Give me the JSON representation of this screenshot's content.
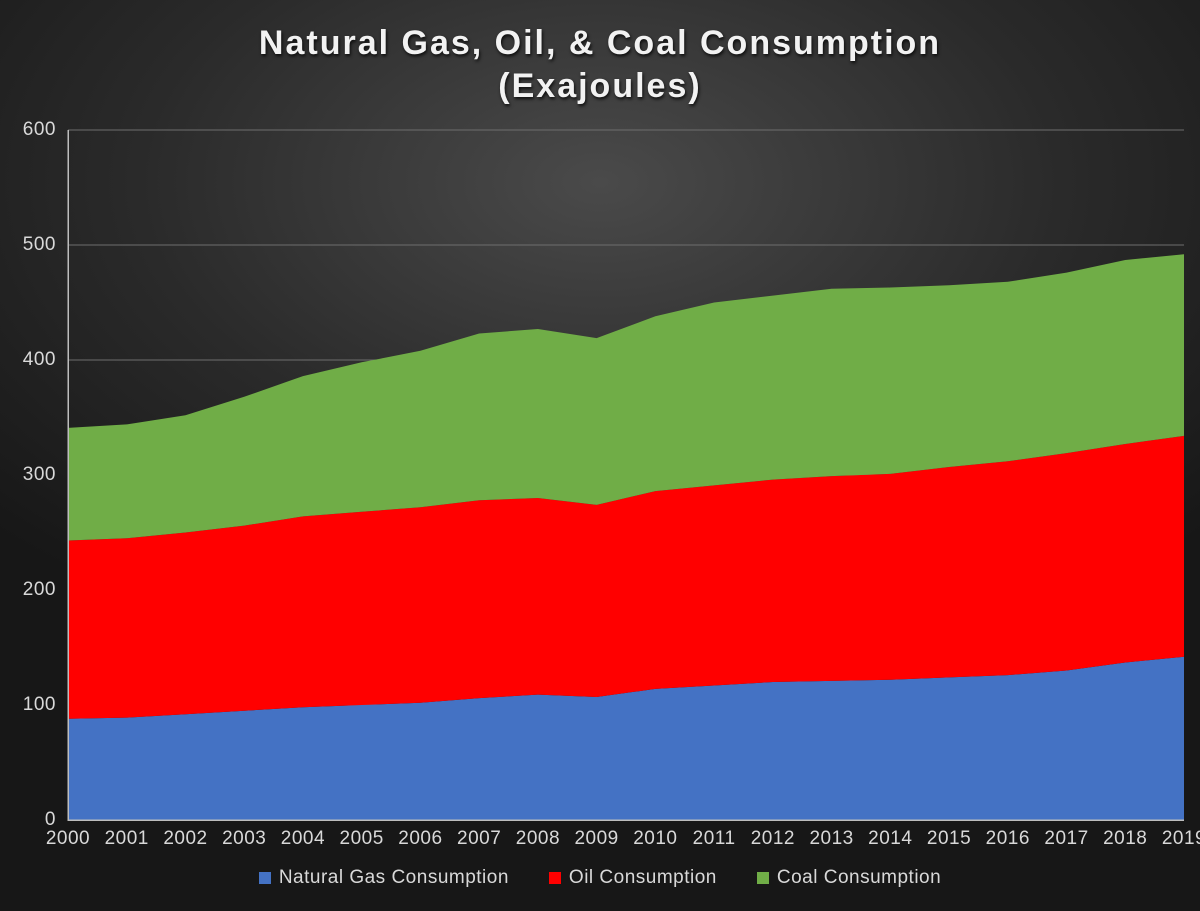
{
  "chart": {
    "type": "area-stacked",
    "title": "Natural Gas, Oil, & Coal Consumption\n(Exajoules)",
    "title_fontsize": 34,
    "title_color": "#f2f2f2",
    "background_gradient": {
      "center": "#4a4a4a",
      "edge": "#171717"
    },
    "axis_color": "#bdbdbd",
    "grid_color": "#6e6e6e",
    "tick_label_color": "#d9d9d9",
    "tick_label_fontsize": 19,
    "ylim": [
      0,
      600
    ],
    "ytick_step": 100,
    "yticks": [
      0,
      100,
      200,
      300,
      400,
      500,
      600
    ],
    "categories": [
      "2000",
      "2001",
      "2002",
      "2003",
      "2004",
      "2005",
      "2006",
      "2007",
      "2008",
      "2009",
      "2010",
      "2011",
      "2012",
      "2013",
      "2014",
      "2015",
      "2016",
      "2017",
      "2018",
      "2019"
    ],
    "series": [
      {
        "name": "Natural Gas Consumption",
        "color": "#4472c4",
        "values": [
          88,
          89,
          92,
          95,
          98,
          100,
          102,
          106,
          109,
          107,
          114,
          117,
          120,
          121,
          122,
          124,
          126,
          130,
          137,
          142
        ]
      },
      {
        "name": "Oil Consumption",
        "color": "#ff0000",
        "values": [
          155,
          156,
          158,
          161,
          166,
          168,
          170,
          172,
          171,
          167,
          172,
          174,
          176,
          178,
          179,
          183,
          186,
          189,
          190,
          192
        ]
      },
      {
        "name": "Coal Consumption",
        "color": "#70ad47",
        "values": [
          98,
          99,
          102,
          112,
          122,
          130,
          136,
          145,
          147,
          145,
          152,
          159,
          160,
          163,
          162,
          158,
          156,
          157,
          160,
          158
        ]
      }
    ],
    "legend": {
      "items": [
        {
          "label": "Natural Gas Consumption",
          "color": "#4472c4"
        },
        {
          "label": "Oil Consumption",
          "color": "#ff0000"
        },
        {
          "label": "Coal Consumption",
          "color": "#70ad47"
        }
      ],
      "fontsize": 19,
      "color": "#d9d9d9"
    }
  }
}
